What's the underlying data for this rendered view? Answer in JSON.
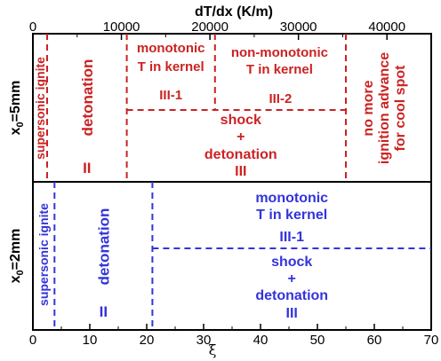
{
  "chart_data": {
    "type": "diagram",
    "colors": {
      "top": "#cc2222",
      "bottom": "#3333dd",
      "axis": "#000000"
    },
    "x_axis": {
      "label": "ξ",
      "range": [
        0,
        70
      ],
      "ticks": [
        0,
        10,
        20,
        30,
        40,
        50,
        60,
        70
      ]
    },
    "top_axis": {
      "label": "dT/dx (K/m)",
      "range": [
        0,
        45000
      ],
      "ticks": [
        0,
        10000,
        20000,
        30000,
        40000
      ],
      "tick_labels": [
        "0",
        "10000",
        "20000",
        "30000",
        "40000"
      ]
    },
    "panels": [
      {
        "ylabel": "x",
        "ylabel_sub": "0",
        "ylabel_rest": "=5mm",
        "color": "#cc2222",
        "boundaries": [
          2.5,
          16.5,
          55
        ],
        "split_x": 32,
        "labels": {
          "supersonic": "supersonic ignite",
          "detonation": "detonation",
          "detonation_num": "II",
          "monotonic_1": "monotonic",
          "monotonic_2": "T in kernel",
          "mono_num": "III-1",
          "nonmono_1": "non-monotonic",
          "nonmono_2": "T in kernel",
          "nonmono_num": "III-2",
          "shock_1": "shock",
          "shock_2": "+",
          "shock_3": "detonation",
          "shock_num": "III",
          "nomore_1": "no more",
          "nomore_2": "ignition advance",
          "nomore_3": "for cool spot"
        }
      },
      {
        "ylabel": "x",
        "ylabel_sub": "0",
        "ylabel_rest": "=2mm",
        "color": "#3333dd",
        "boundaries": [
          3.8,
          21
        ],
        "labels": {
          "supersonic": "supersonic ignite",
          "detonation": "detonation",
          "detonation_num": "II",
          "monotonic_1": "monotonic",
          "monotonic_2": "T in kernel",
          "mono_num": "III-1",
          "shock_1": "shock",
          "shock_2": "+",
          "shock_3": "detonation",
          "shock_num": "III"
        }
      }
    ]
  }
}
